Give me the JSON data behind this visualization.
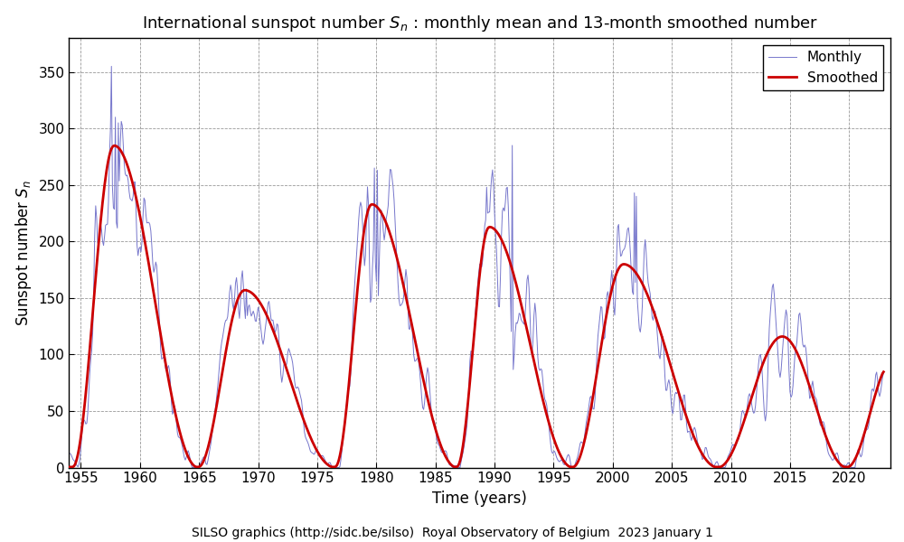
{
  "title": "International sunspot number $S_n$ : monthly mean and 13-month smoothed number",
  "xlabel": "Time (years)",
  "ylabel": "Sunspot number $S_n$",
  "footer": "SILSO graphics (http://sidc.be/silso)  Royal Observatory of Belgium  2023 January 1",
  "monthly_color": "#7777cc",
  "smoothed_color": "#cc0000",
  "monthly_lw": 0.7,
  "smoothed_lw": 2.0,
  "ylim": [
    0,
    380
  ],
  "xlim_start": 1954.0,
  "xlim_end": 2023.5,
  "yticks": [
    0,
    50,
    100,
    150,
    200,
    250,
    300,
    350
  ],
  "title_fontsize": 13,
  "label_fontsize": 12,
  "tick_fontsize": 11,
  "footer_fontsize": 10,
  "legend_loc": "upper right",
  "grid_color": "#999999",
  "grid_ls": "--",
  "grid_lw": 0.6,
  "bg_color": "#ffffff"
}
